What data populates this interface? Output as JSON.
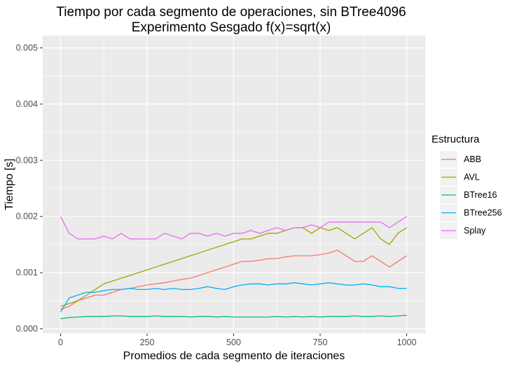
{
  "chart_data": {
    "type": "line",
    "title": "Tiempo por cada segmento de operaciones, sin BTree4096",
    "subtitle": "Experimento Sesgado f(x)=sqrt(x)",
    "xlabel": "Promedios de cada segmento de iteraciones",
    "ylabel": "Tiempo [s]",
    "xlim": [
      0,
      1000
    ],
    "ylim": [
      0,
      0.005
    ],
    "x_ticks": [
      0,
      250,
      500,
      750,
      1000
    ],
    "x_tick_labels": [
      "0",
      "250",
      "500",
      "750",
      "1000"
    ],
    "y_ticks": [
      0,
      0.001,
      0.002,
      0.003,
      0.004,
      0.005
    ],
    "y_tick_labels": [
      "0.000",
      "0.001",
      "0.002",
      "0.003",
      "0.004",
      "0.005"
    ],
    "grid": true,
    "legend_title": "Estructura",
    "legend_position": "right",
    "x": [
      0,
      25,
      50,
      75,
      100,
      125,
      150,
      175,
      200,
      225,
      250,
      275,
      300,
      325,
      350,
      375,
      400,
      425,
      450,
      475,
      500,
      525,
      550,
      575,
      600,
      625,
      650,
      675,
      700,
      725,
      750,
      775,
      800,
      825,
      850,
      875,
      900,
      925,
      950,
      975,
      1000
    ],
    "series": [
      {
        "name": "ABB",
        "color": "#F8766D",
        "values": [
          0.00035,
          0.0004,
          0.0005,
          0.00055,
          0.0006,
          0.0006,
          0.00065,
          0.0007,
          0.00072,
          0.00075,
          0.00078,
          0.0008,
          0.00082,
          0.00085,
          0.00088,
          0.0009,
          0.00095,
          0.001,
          0.00105,
          0.0011,
          0.00115,
          0.0012,
          0.0012,
          0.00122,
          0.00125,
          0.00125,
          0.00128,
          0.0013,
          0.0013,
          0.0013,
          0.00132,
          0.00135,
          0.0014,
          0.0013,
          0.0012,
          0.0012,
          0.0013,
          0.0012,
          0.0011,
          0.0012,
          0.0013
        ]
      },
      {
        "name": "AVL",
        "color": "#A3A500",
        "values": [
          0.0004,
          0.00045,
          0.0005,
          0.0006,
          0.0007,
          0.0008,
          0.00085,
          0.0009,
          0.00095,
          0.001,
          0.00105,
          0.0011,
          0.00115,
          0.0012,
          0.00125,
          0.0013,
          0.00135,
          0.0014,
          0.00145,
          0.0015,
          0.00155,
          0.0016,
          0.0016,
          0.00165,
          0.0017,
          0.0017,
          0.00175,
          0.0018,
          0.0018,
          0.0017,
          0.0018,
          0.00175,
          0.0018,
          0.0017,
          0.0016,
          0.0017,
          0.0018,
          0.0016,
          0.0015,
          0.0017,
          0.0018
        ]
      },
      {
        "name": "BTree16",
        "color": "#00BF7D",
        "values": [
          0.00018,
          0.0002,
          0.00021,
          0.00022,
          0.00022,
          0.00022,
          0.00023,
          0.00023,
          0.00022,
          0.00022,
          0.00022,
          0.00023,
          0.00022,
          0.00022,
          0.00022,
          0.00021,
          0.00022,
          0.00022,
          0.00021,
          0.00022,
          0.00021,
          0.00021,
          0.00021,
          0.00021,
          0.00021,
          0.00022,
          0.00021,
          0.00022,
          0.00021,
          0.00022,
          0.00021,
          0.00022,
          0.00022,
          0.00022,
          0.00023,
          0.00022,
          0.00022,
          0.00023,
          0.00022,
          0.00023,
          0.00024
        ]
      },
      {
        "name": "BTree256",
        "color": "#00B0F6",
        "values": [
          0.0003,
          0.00055,
          0.0006,
          0.00065,
          0.00065,
          0.00068,
          0.0007,
          0.0007,
          0.00072,
          0.0007,
          0.0007,
          0.00072,
          0.0007,
          0.00072,
          0.0007,
          0.0007,
          0.00072,
          0.00075,
          0.00072,
          0.0007,
          0.00075,
          0.00078,
          0.0008,
          0.0008,
          0.00078,
          0.0008,
          0.0008,
          0.00082,
          0.0008,
          0.00078,
          0.0008,
          0.00082,
          0.0008,
          0.00078,
          0.00078,
          0.0008,
          0.00078,
          0.00075,
          0.00075,
          0.00072,
          0.00072
        ]
      },
      {
        "name": "Splay",
        "color": "#E76BF3",
        "values": [
          0.002,
          0.0017,
          0.0016,
          0.0016,
          0.0016,
          0.00165,
          0.0016,
          0.0017,
          0.0016,
          0.0016,
          0.0016,
          0.0016,
          0.0017,
          0.00165,
          0.0016,
          0.0017,
          0.0017,
          0.00165,
          0.0017,
          0.00165,
          0.0017,
          0.0017,
          0.00175,
          0.0017,
          0.00175,
          0.0018,
          0.00175,
          0.0018,
          0.0018,
          0.00185,
          0.0018,
          0.0019,
          0.0019,
          0.0019,
          0.0019,
          0.0019,
          0.0019,
          0.0019,
          0.0018,
          0.0019,
          0.002
        ]
      }
    ]
  }
}
